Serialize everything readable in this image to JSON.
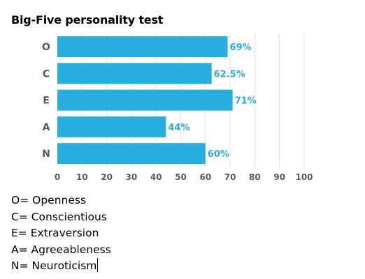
{
  "chart_data": {
    "type": "bar",
    "orientation": "horizontal",
    "title": "Big-Five personality test",
    "categories": [
      "O",
      "C",
      "E",
      "A",
      "N"
    ],
    "values": [
      69,
      62.5,
      71,
      44,
      60
    ],
    "value_labels": [
      "69%",
      "62.5%",
      "71%",
      "44%",
      "60%"
    ],
    "xlim": [
      0,
      100
    ],
    "xticks": [
      0,
      10,
      20,
      30,
      40,
      50,
      60,
      70,
      80,
      90,
      100
    ],
    "grid": true,
    "bar_color": "#29aee0",
    "label_color": "#29aee0"
  },
  "legend": [
    "O= Openness",
    "C= Conscientious",
    "E= Extraversion",
    "A= Agreeableness",
    "N= Neuroticism"
  ]
}
